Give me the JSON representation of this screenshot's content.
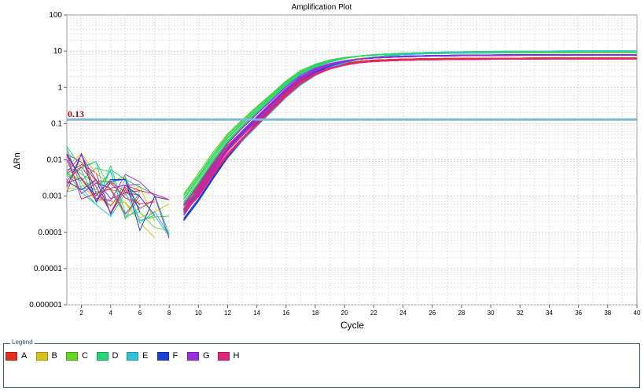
{
  "chart_data": {
    "type": "line",
    "title": "Amplification Plot",
    "xlabel": "Cycle",
    "ylabel": "ΔRn",
    "y_scale": "log",
    "xlim": [
      1,
      40
    ],
    "ylim": [
      1e-06,
      100
    ],
    "x_ticks": [
      2,
      4,
      6,
      8,
      10,
      12,
      14,
      16,
      18,
      20,
      22,
      24,
      26,
      28,
      30,
      32,
      34,
      36,
      38,
      40
    ],
    "y_ticks": [
      {
        "value": 100,
        "label": "100"
      },
      {
        "value": 10,
        "label": "10"
      },
      {
        "value": 1,
        "label": "1"
      },
      {
        "value": 0.1,
        "label": "0.1"
      },
      {
        "value": 0.01,
        "label": "0.01"
      },
      {
        "value": 0.001,
        "label": "0.001"
      },
      {
        "value": 0.0001,
        "label": "0.0001"
      },
      {
        "value": 1e-05,
        "label": "0.00001"
      },
      {
        "value": 1e-06,
        "label": "0.000001"
      }
    ],
    "grid": true,
    "threshold": {
      "value": 0.13,
      "label": "0.13",
      "color": "#7fb5d9",
      "label_color": "#a31515"
    },
    "legend_title": "Legend",
    "legend_position": "bottom",
    "series": [
      {
        "name": "A",
        "color": "#e0301e",
        "x": [
          9,
          10,
          11,
          12,
          13,
          14,
          15,
          16,
          17,
          18,
          19,
          20,
          21,
          22,
          24,
          26,
          28,
          30,
          32,
          34,
          36,
          38,
          40
        ],
        "y": [
          0.0005,
          0.0015,
          0.006,
          0.02,
          0.05,
          0.12,
          0.3,
          0.7,
          1.5,
          2.5,
          3.6,
          4.5,
          5.2,
          5.6,
          6.0,
          6.2,
          6.3,
          6.4,
          6.4,
          6.5,
          6.5,
          6.5,
          6.5
        ]
      },
      {
        "name": "B",
        "color": "#d9c218",
        "x": [
          9,
          10,
          11,
          12,
          13,
          14,
          15,
          16,
          17,
          18,
          19,
          20,
          21,
          22,
          24,
          26,
          28,
          30,
          32,
          34,
          36,
          38,
          40
        ],
        "y": [
          0.0006,
          0.002,
          0.008,
          0.03,
          0.07,
          0.17,
          0.4,
          1.0,
          2.0,
          3.2,
          4.6,
          5.6,
          6.3,
          6.8,
          7.2,
          7.5,
          7.6,
          7.7,
          7.8,
          7.8,
          7.8,
          7.8,
          7.8
        ]
      },
      {
        "name": "C",
        "color": "#66d426",
        "x": [
          9,
          10,
          11,
          12,
          13,
          14,
          15,
          16,
          17,
          18,
          19,
          20,
          21,
          22,
          24,
          26,
          28,
          30,
          32,
          34,
          36,
          38,
          40
        ],
        "y": [
          0.0008,
          0.003,
          0.012,
          0.04,
          0.1,
          0.24,
          0.55,
          1.3,
          2.6,
          4.0,
          5.4,
          6.5,
          7.3,
          7.8,
          8.3,
          8.6,
          8.8,
          8.9,
          9.0,
          9.0,
          9.1,
          9.1,
          9.1
        ]
      },
      {
        "name": "D",
        "color": "#26d47a",
        "x": [
          9,
          10,
          11,
          12,
          13,
          14,
          15,
          16,
          17,
          18,
          19,
          20,
          21,
          22,
          24,
          26,
          28,
          30,
          32,
          34,
          36,
          38,
          40
        ],
        "y": [
          0.0007,
          0.0025,
          0.01,
          0.035,
          0.09,
          0.22,
          0.5,
          1.2,
          2.4,
          3.8,
          5.2,
          6.4,
          7.3,
          8.0,
          8.7,
          9.2,
          9.5,
          9.7,
          9.9,
          10.0,
          10.1,
          10.2,
          10.2
        ]
      },
      {
        "name": "E",
        "color": "#2ec4d4",
        "x": [
          9,
          10,
          11,
          12,
          13,
          14,
          15,
          16,
          17,
          18,
          19,
          20,
          21,
          22,
          24,
          26,
          28,
          30,
          32,
          34,
          36,
          38,
          40
        ],
        "y": [
          0.0005,
          0.0012,
          0.004,
          0.012,
          0.035,
          0.09,
          0.22,
          0.55,
          1.2,
          2.2,
          3.5,
          4.8,
          6.0,
          6.9,
          8.0,
          8.7,
          9.1,
          9.4,
          9.6,
          9.7,
          9.8,
          9.8,
          9.8
        ]
      },
      {
        "name": "F",
        "color": "#1f3fd4",
        "x": [
          9,
          10,
          11,
          12,
          13,
          14,
          15,
          16,
          17,
          18,
          19,
          20,
          21,
          22,
          24,
          26,
          28,
          30,
          32,
          34,
          36,
          38,
          40
        ],
        "y": [
          0.0003,
          0.001,
          0.004,
          0.015,
          0.045,
          0.12,
          0.3,
          0.75,
          1.6,
          2.8,
          4.1,
          5.2,
          6.0,
          6.6,
          7.2,
          7.5,
          7.7,
          7.8,
          7.9,
          7.9,
          7.9,
          8.0,
          8.0
        ]
      },
      {
        "name": "G",
        "color": "#9c2ee0",
        "x": [
          9,
          10,
          11,
          12,
          13,
          14,
          15,
          16,
          17,
          18,
          19,
          20,
          21,
          22,
          24,
          26,
          28,
          30,
          32,
          34,
          36,
          38,
          40
        ],
        "y": [
          0.0004,
          0.0015,
          0.006,
          0.022,
          0.06,
          0.15,
          0.37,
          0.9,
          1.9,
          3.1,
          4.3,
          5.3,
          6.0,
          6.5,
          7.0,
          7.3,
          7.5,
          7.6,
          7.7,
          7.7,
          7.8,
          7.8,
          7.8
        ]
      },
      {
        "name": "H",
        "color": "#e0267a",
        "x": [
          9,
          10,
          11,
          12,
          13,
          14,
          15,
          16,
          17,
          18,
          19,
          20,
          21,
          22,
          24,
          26,
          28,
          30,
          32,
          34,
          36,
          38,
          40
        ],
        "y": [
          0.0005,
          0.0013,
          0.005,
          0.017,
          0.045,
          0.11,
          0.27,
          0.65,
          1.4,
          2.4,
          3.4,
          4.2,
          4.8,
          5.2,
          5.6,
          5.8,
          5.9,
          6.0,
          6.0,
          6.1,
          6.1,
          6.1,
          6.1
        ]
      }
    ]
  }
}
